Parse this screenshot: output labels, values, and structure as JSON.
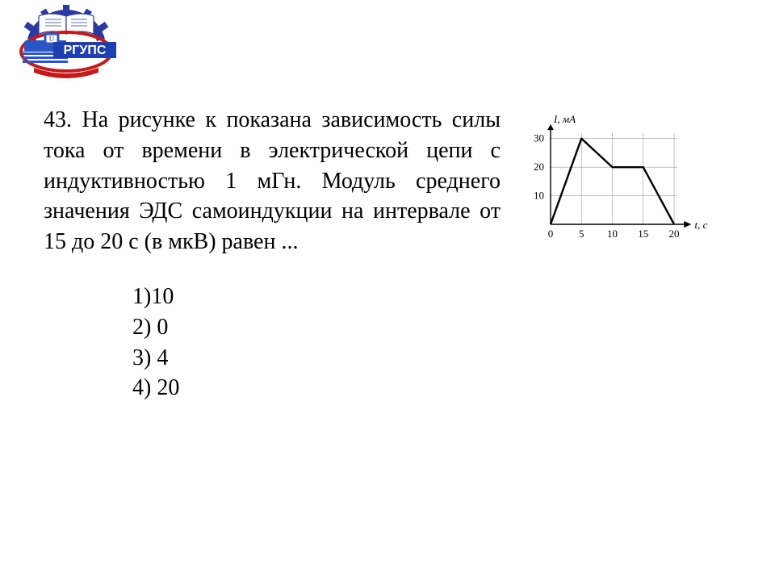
{
  "logo": {
    "top_text": "U",
    "banner_text": "РГУПС",
    "banner_bg": "#1f3fb0",
    "banner_fg": "#ffffff",
    "gear_color": "#2a3aa0",
    "red": "#c61a1a",
    "train_blue": "#2a55c4"
  },
  "question": {
    "number": "43.",
    "text": "На рисунке к показана зависимость силы тока от времени в электрической цепи с индуктивностью 1 мГн. Модуль среднего значения ЭДС самоиндукции на интервале от 15 до 20 с (в мкВ) равен ..."
  },
  "options": [
    "1)10",
    "2) 0",
    "3) 4",
    "4) 20"
  ],
  "chart": {
    "type": "line",
    "y_label_top": "I, мА",
    "x_label_right": "t, с",
    "x_ticks": [
      0,
      5,
      10,
      15,
      20
    ],
    "y_ticks": [
      10,
      20,
      30
    ],
    "points_t": [
      0,
      5,
      10,
      15,
      20
    ],
    "points_I": [
      0,
      30,
      20,
      20,
      0
    ],
    "xlim": [
      0,
      23
    ],
    "ylim": [
      0,
      35
    ],
    "axis_color": "#000000",
    "grid_color": "#9a9a9a",
    "line_color": "#000000",
    "line_width": 2.4,
    "grid_width": 0.6,
    "tick_fontsize": 13,
    "label_fontsize": 13,
    "background_color": "#ffffff"
  }
}
